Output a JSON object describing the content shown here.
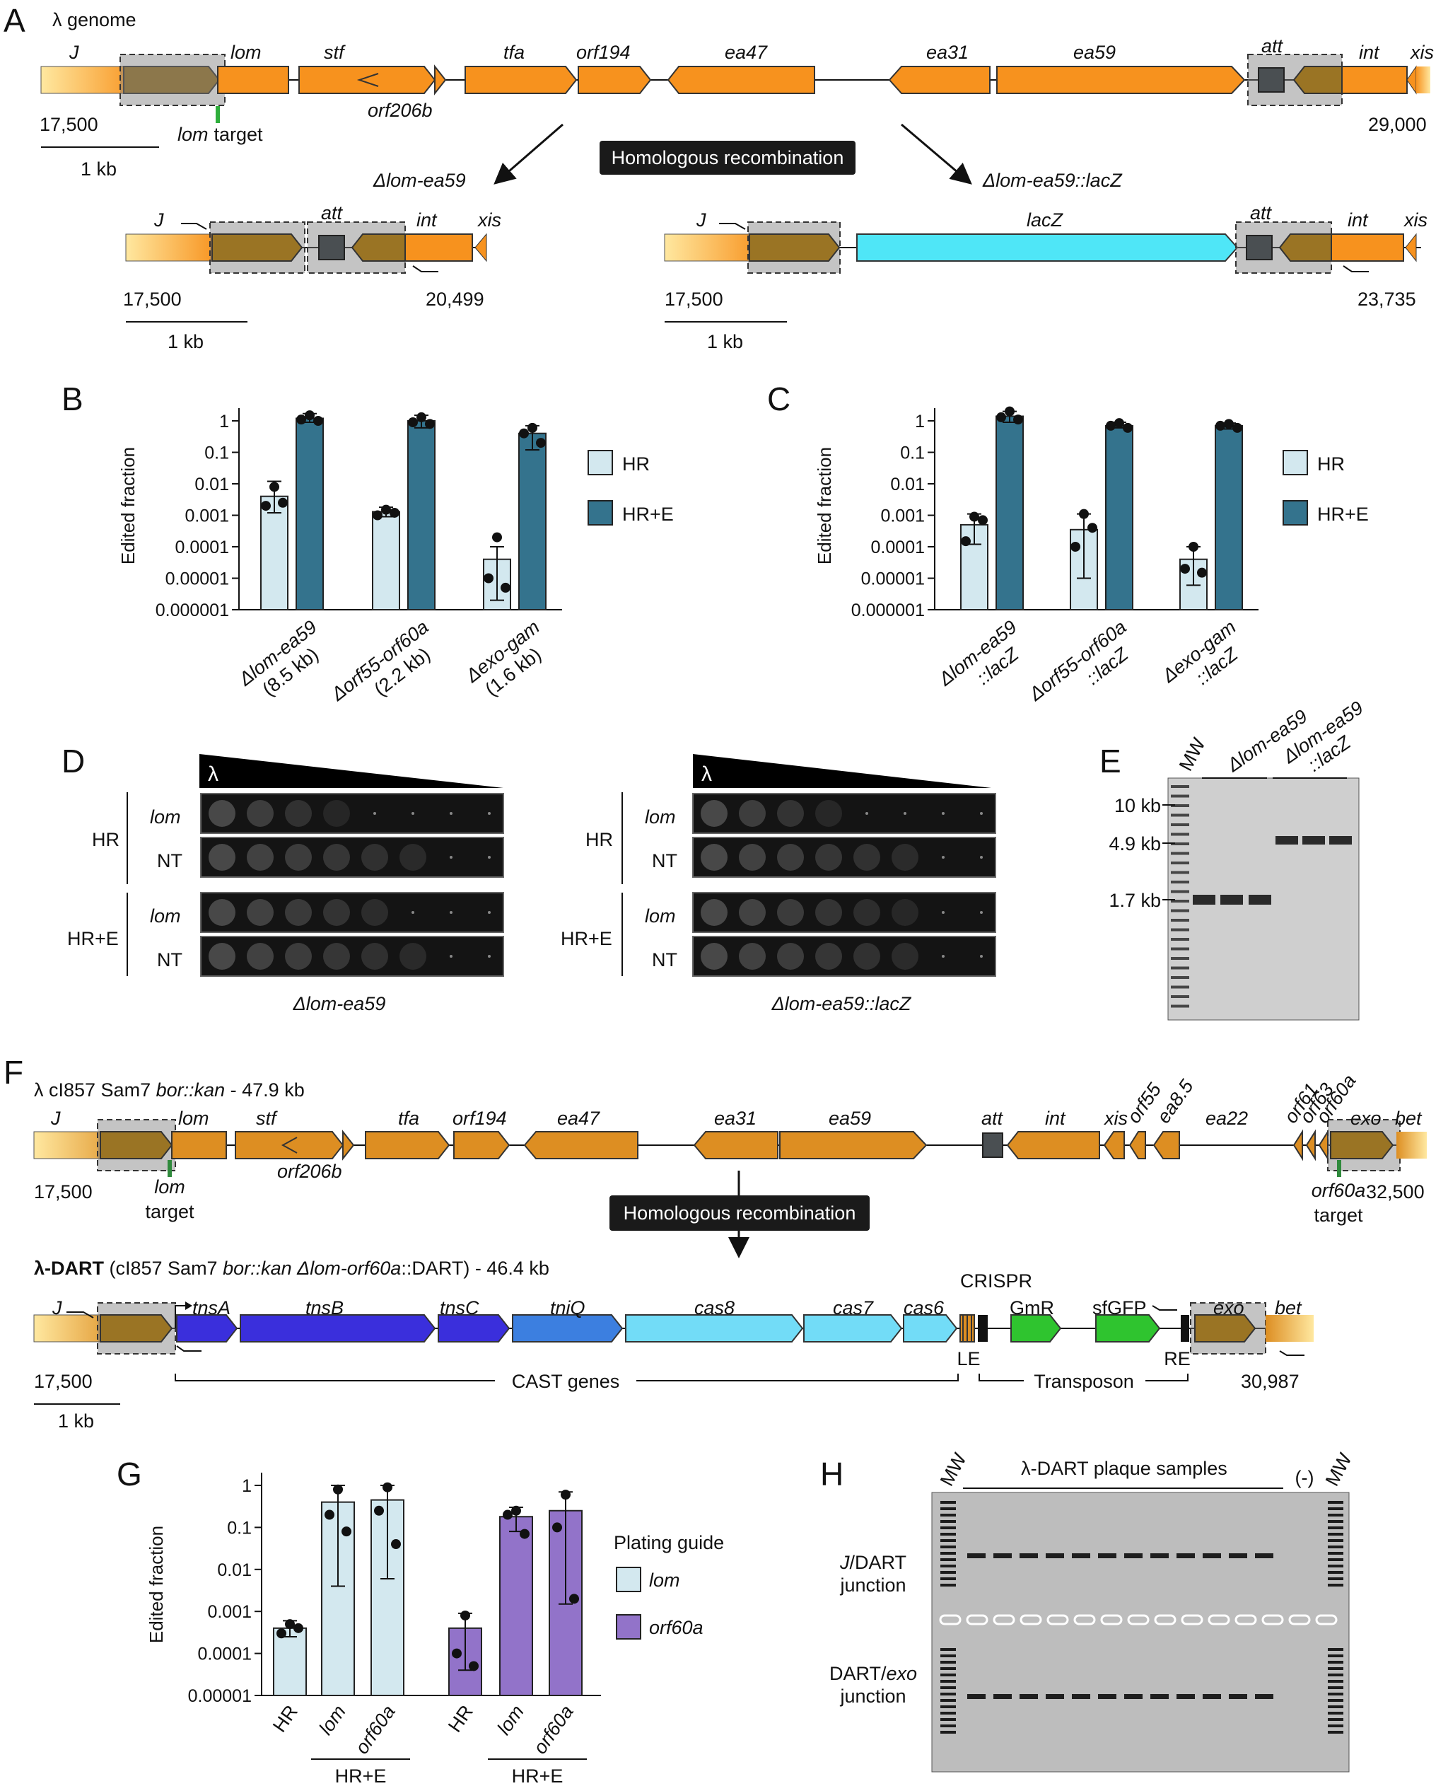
{
  "panels": {
    "A": {
      "letter": "A",
      "genome_label": "λ genome",
      "genes": [
        "J",
        "lom",
        "stf",
        "tfa",
        "orf194",
        "ea47",
        "ea31",
        "ea59",
        "att",
        "int",
        "xis"
      ],
      "sub_gene": "orf206b",
      "coord_start": "17,500",
      "coord_end": "29,000",
      "target_gene": "lom",
      "target_word": "target",
      "scale": "1 kb",
      "hr_label": "Homologous recombination",
      "left_construct": "Δlom-ea59",
      "right_construct": "Δlom-ea59::lacZ",
      "left_genes": [
        "J",
        "att",
        "int",
        "xis"
      ],
      "left_start": "17,500",
      "left_end": "20,499",
      "right_genes": [
        "J",
        "lacZ",
        "att",
        "int",
        "xis"
      ],
      "right_start": "17,500",
      "right_end": "23,735"
    },
    "B": {
      "letter": "B",
      "ylabel": "Edited fraction",
      "categories": [
        [
          "Δlom-ea59",
          "(8.5 kb)"
        ],
        [
          "Δorf55-orf60a",
          "(2.2 kb)"
        ],
        [
          "Δexo-gam",
          "(1.6 kb)"
        ]
      ],
      "legend": [
        "HR",
        "HR+E"
      ]
    },
    "C": {
      "letter": "C",
      "ylabel": "Edited fraction",
      "categories": [
        [
          "Δlom-ea59",
          "::lacZ"
        ],
        [
          "Δorf55-orf60a",
          "::lacZ"
        ],
        [
          "Δexo-gam",
          "::lacZ"
        ]
      ],
      "legend": [
        "HR",
        "HR+E"
      ]
    },
    "D": {
      "letter": "D",
      "phage": "λ",
      "groups": [
        "HR",
        "HR+E"
      ],
      "rows": [
        "lom",
        "NT"
      ],
      "left_caption": "Δlom-ea59",
      "right_caption": "Δlom-ea59::lacZ"
    },
    "E": {
      "letter": "E",
      "mw": "MW",
      "lanes": [
        "Δlom-ea59",
        "Δlom-ea59",
        "::lacZ"
      ],
      "markers": [
        "10 kb",
        "4.9 kb",
        "1.7 kb"
      ]
    },
    "F": {
      "letter": "F",
      "top_title_pre": "λ cI857 Sam7 ",
      "top_title_it": "bor::kan",
      "top_title_post": " - 47.9 kb",
      "top_genes": [
        "J",
        "lom",
        "stf",
        "tfa",
        "orf194",
        "ea47",
        "ea31",
        "ea59",
        "att",
        "int",
        "xis",
        "orf55",
        "ea8.5",
        "ea22",
        "orf61",
        "orf63",
        "orf60a",
        "exo",
        "bet"
      ],
      "sub_gene": "orf206b",
      "top_start": "17,500",
      "top_end": "32,500",
      "lom_target": [
        "lom",
        "target"
      ],
      "orf_target": [
        "orf60a",
        "target"
      ],
      "hr_label": "Homologous recombination",
      "dart_title_b": "λ-DART",
      "dart_title_pre": " (cI857 Sam7 ",
      "dart_title_it": "bor::kan Δlom-orf60a",
      "dart_title_post": "::DART) - 46.4 kb",
      "dart_genes": [
        "J",
        "tnsA",
        "tnsB",
        "tnsC",
        "tniQ",
        "cas8",
        "cas7",
        "cas6",
        "GmR",
        "sfGFP",
        "exo",
        "bet"
      ],
      "crispr": "CRISPR",
      "le": "LE",
      "re": "RE",
      "cast_label": "CAST genes",
      "transposon_label": "Transposon",
      "dart_start": "17,500",
      "dart_end": "30,987",
      "scale": "1 kb"
    },
    "G": {
      "letter": "G",
      "ylabel": "Edited fraction",
      "categories": [
        "HR",
        "lom",
        "orf60a",
        "HR",
        "lom",
        "orf60a"
      ],
      "group_label": "HR+E",
      "legend_title": "Plating guide",
      "legend": [
        "lom",
        "orf60a"
      ]
    },
    "H": {
      "letter": "H",
      "mw": "MW",
      "neg": "(-)",
      "samples_label": "λ-DART plaque samples",
      "row1": [
        "J",
        "/DART",
        "junction"
      ],
      "row2": [
        "DART/",
        "exo",
        "junction"
      ]
    }
  },
  "chart_data": [
    {
      "type": "bar",
      "panel": "B",
      "yscale": "log",
      "ylim": [
        1e-06,
        1
      ],
      "yticks": [
        "1",
        "0.1",
        "0.01",
        "0.001",
        "0.0001",
        "0.00001",
        "0.000001"
      ],
      "ylabel": "Edited fraction",
      "categories": [
        "Δlom-ea59 (8.5 kb)",
        "Δorf55-orf60a (2.2 kb)",
        "Δexo-gam (1.6 kb)"
      ],
      "series": [
        {
          "name": "HR",
          "color": "#d3e8ef",
          "values": [
            0.004,
            0.0013,
            4e-05
          ],
          "err": [
            [
              0.0012,
              0.012
            ],
            [
              0.0009,
              0.0018
            ],
            [
              2e-06,
              0.0001
            ]
          ],
          "points": [
            [
              0.008,
              0.002,
              0.0025
            ],
            [
              0.0015,
              0.001,
              0.0012
            ],
            [
              0.0002,
              1e-05,
              5e-06
            ]
          ]
        },
        {
          "name": "HR+E",
          "color": "#34738d",
          "values": [
            1.2,
            1.0,
            0.4
          ],
          "err": [
            [
              0.9,
              1.7
            ],
            [
              0.6,
              1.5
            ],
            [
              0.12,
              0.7
            ]
          ],
          "points": [
            [
              1.5,
              1.1,
              1.0
            ],
            [
              1.3,
              0.9,
              0.8
            ],
            [
              0.6,
              0.4,
              0.2
            ]
          ]
        }
      ]
    },
    {
      "type": "bar",
      "panel": "C",
      "yscale": "log",
      "ylim": [
        1e-06,
        1
      ],
      "yticks": [
        "1",
        "0.1",
        "0.01",
        "0.001",
        "0.0001",
        "0.00001",
        "0.000001"
      ],
      "ylabel": "Edited fraction",
      "categories": [
        "Δlom-ea59::lacZ",
        "Δorf55-orf60a::lacZ",
        "Δexo-gam::lacZ"
      ],
      "series": [
        {
          "name": "HR",
          "color": "#d3e8ef",
          "values": [
            0.0005,
            0.00035,
            4e-05
          ],
          "err": [
            [
              0.00012,
              0.0011
            ],
            [
              1e-05,
              0.0011
            ],
            [
              6e-06,
              0.0001
            ]
          ],
          "points": [
            [
              0.0009,
              0.00015,
              0.0007
            ],
            [
              0.0011,
              0.0001,
              0.0004
            ],
            [
              0.0001,
              2e-05,
              1.5e-05
            ]
          ]
        },
        {
          "name": "HR+E",
          "color": "#34738d",
          "values": [
            1.4,
            0.7,
            0.7
          ],
          "err": [
            [
              0.9,
              2.0
            ],
            [
              0.6,
              0.9
            ],
            [
              0.55,
              0.85
            ]
          ],
          "points": [
            [
              2.0,
              1.3,
              1.1
            ],
            [
              0.85,
              0.7,
              0.6
            ],
            [
              0.8,
              0.7,
              0.6
            ]
          ]
        }
      ]
    },
    {
      "type": "bar",
      "panel": "G",
      "yscale": "log",
      "ylim": [
        1e-05,
        1
      ],
      "yticks": [
        "1",
        "0.1",
        "0.01",
        "0.001",
        "0.0001",
        "0.00001"
      ],
      "ylabel": "Edited fraction",
      "categories": [
        "HR",
        "lom",
        "orf60a",
        "HR",
        "lom",
        "orf60a"
      ],
      "groups": [
        "lom",
        "lom",
        "lom",
        "orf60a",
        "orf60a",
        "orf60a"
      ],
      "values": [
        0.0004,
        0.4,
        0.45,
        0.0004,
        0.18,
        0.25
      ],
      "colors": [
        "#d3e8ef",
        "#d3e8ef",
        "#d3e8ef",
        "#9273c9",
        "#9273c9",
        "#9273c9"
      ],
      "err": [
        [
          0.00025,
          0.0006
        ],
        [
          0.004,
          1.0
        ],
        [
          0.006,
          1.0
        ],
        [
          4e-05,
          0.0009
        ],
        [
          0.08,
          0.3
        ],
        [
          0.0015,
          0.7
        ]
      ],
      "points": [
        [
          0.0005,
          0.0003,
          0.0004
        ],
        [
          0.8,
          0.2,
          0.08
        ],
        [
          0.9,
          0.25,
          0.04
        ],
        [
          0.0008,
          0.0001,
          5e-05
        ],
        [
          0.25,
          0.2,
          0.07
        ],
        [
          0.6,
          0.1,
          0.002
        ]
      ]
    }
  ]
}
